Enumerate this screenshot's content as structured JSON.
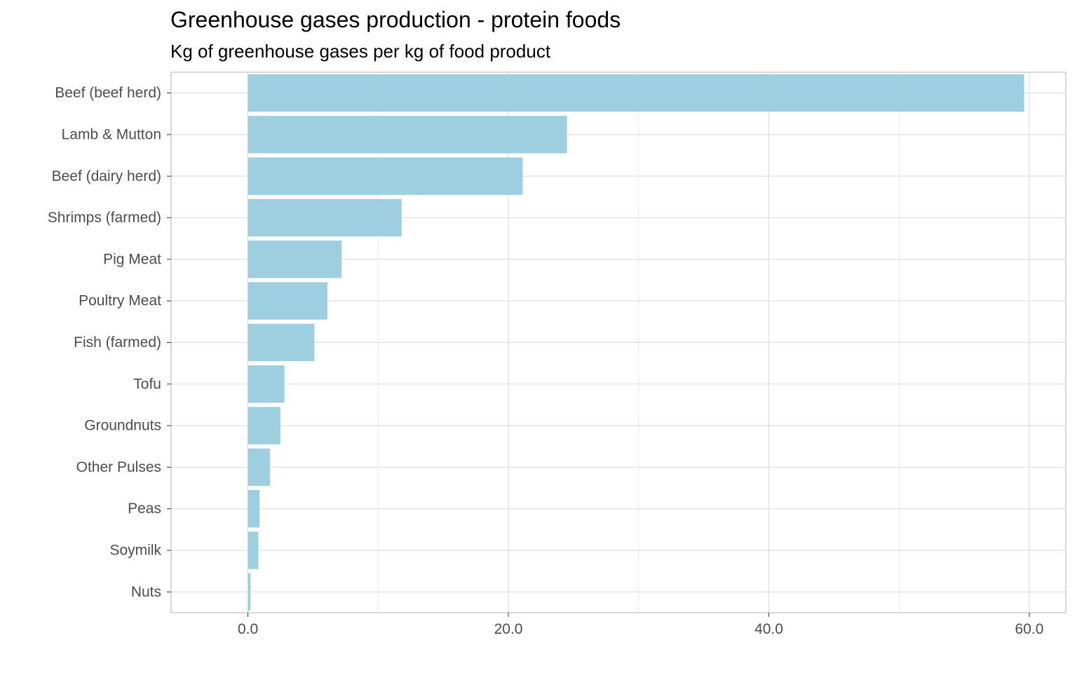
{
  "chart_data": {
    "type": "bar",
    "orientation": "horizontal",
    "title": "Greenhouse gases production - protein foods",
    "subtitle": "Kg of greenhouse gases per kg of food product",
    "xlabel": "",
    "ylabel": "",
    "categories": [
      "Beef (beef herd)",
      "Lamb & Mutton",
      "Beef (dairy herd)",
      "Shrimps (farmed)",
      "Pig Meat",
      "Poultry Meat",
      "Fish (farmed)",
      "Tofu",
      "Groundnuts",
      "Other Pulses",
      "Peas",
      "Soymilk",
      "Nuts"
    ],
    "values": [
      59.6,
      24.5,
      21.1,
      11.8,
      7.2,
      6.1,
      5.1,
      2.8,
      2.5,
      1.7,
      0.9,
      0.8,
      0.2
    ],
    "xlim": [
      -5.9,
      62.8
    ],
    "xticks": [
      0,
      20,
      40,
      60
    ],
    "xtick_labels": [
      "0.0",
      "20.0",
      "40.0",
      "60.0"
    ],
    "bar_color": "#9ecfe0",
    "grid": true,
    "theme": "light"
  }
}
